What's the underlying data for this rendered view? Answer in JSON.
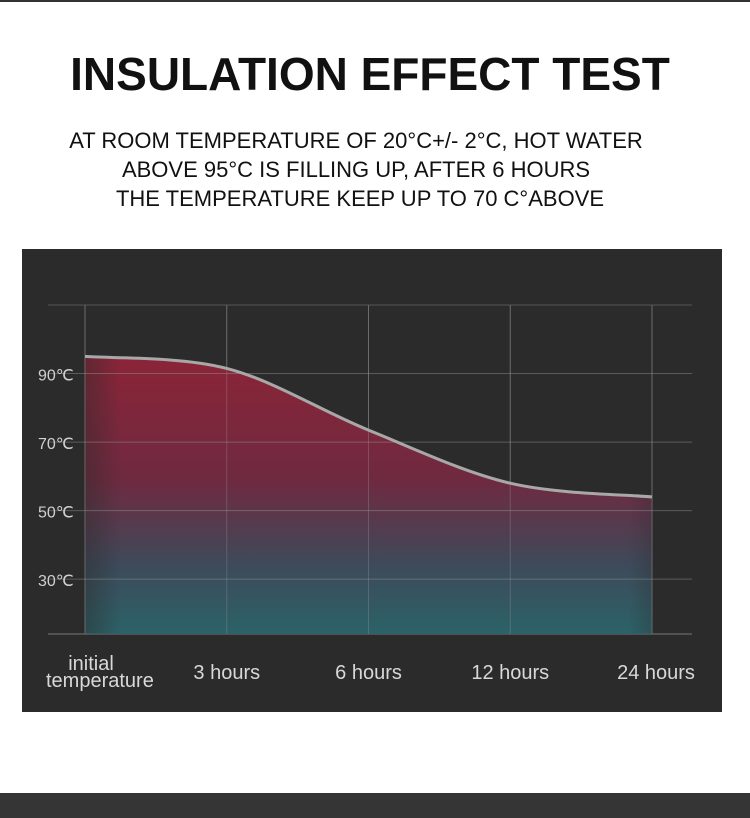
{
  "chart_data": {
    "type": "line",
    "title": "INSULATION EFFECT TEST",
    "subtitle_lines": [
      "AT ROOM TEMPERATURE OF 20°C+/- 2°C, HOT WATER",
      "ABOVE 95°C IS FILLING UP, AFTER 6 HOURS",
      "THE TEMPERATURE KEEP UP TO 70 C°ABOVE"
    ],
    "categories": [
      "initial temperature",
      "3 hours",
      "6 hours",
      "12 hours",
      "24 hours"
    ],
    "values": [
      95,
      91.5,
      73.5,
      58,
      54
    ],
    "color": "#a8a8a8",
    "ylim": [
      14,
      110
    ],
    "yticks": [
      {
        "value": 30,
        "label": "30℃"
      },
      {
        "value": 50,
        "label": "50℃"
      },
      {
        "value": 70,
        "label": "70℃"
      },
      {
        "value": 90,
        "label": "90℃"
      }
    ],
    "grid": true
  }
}
